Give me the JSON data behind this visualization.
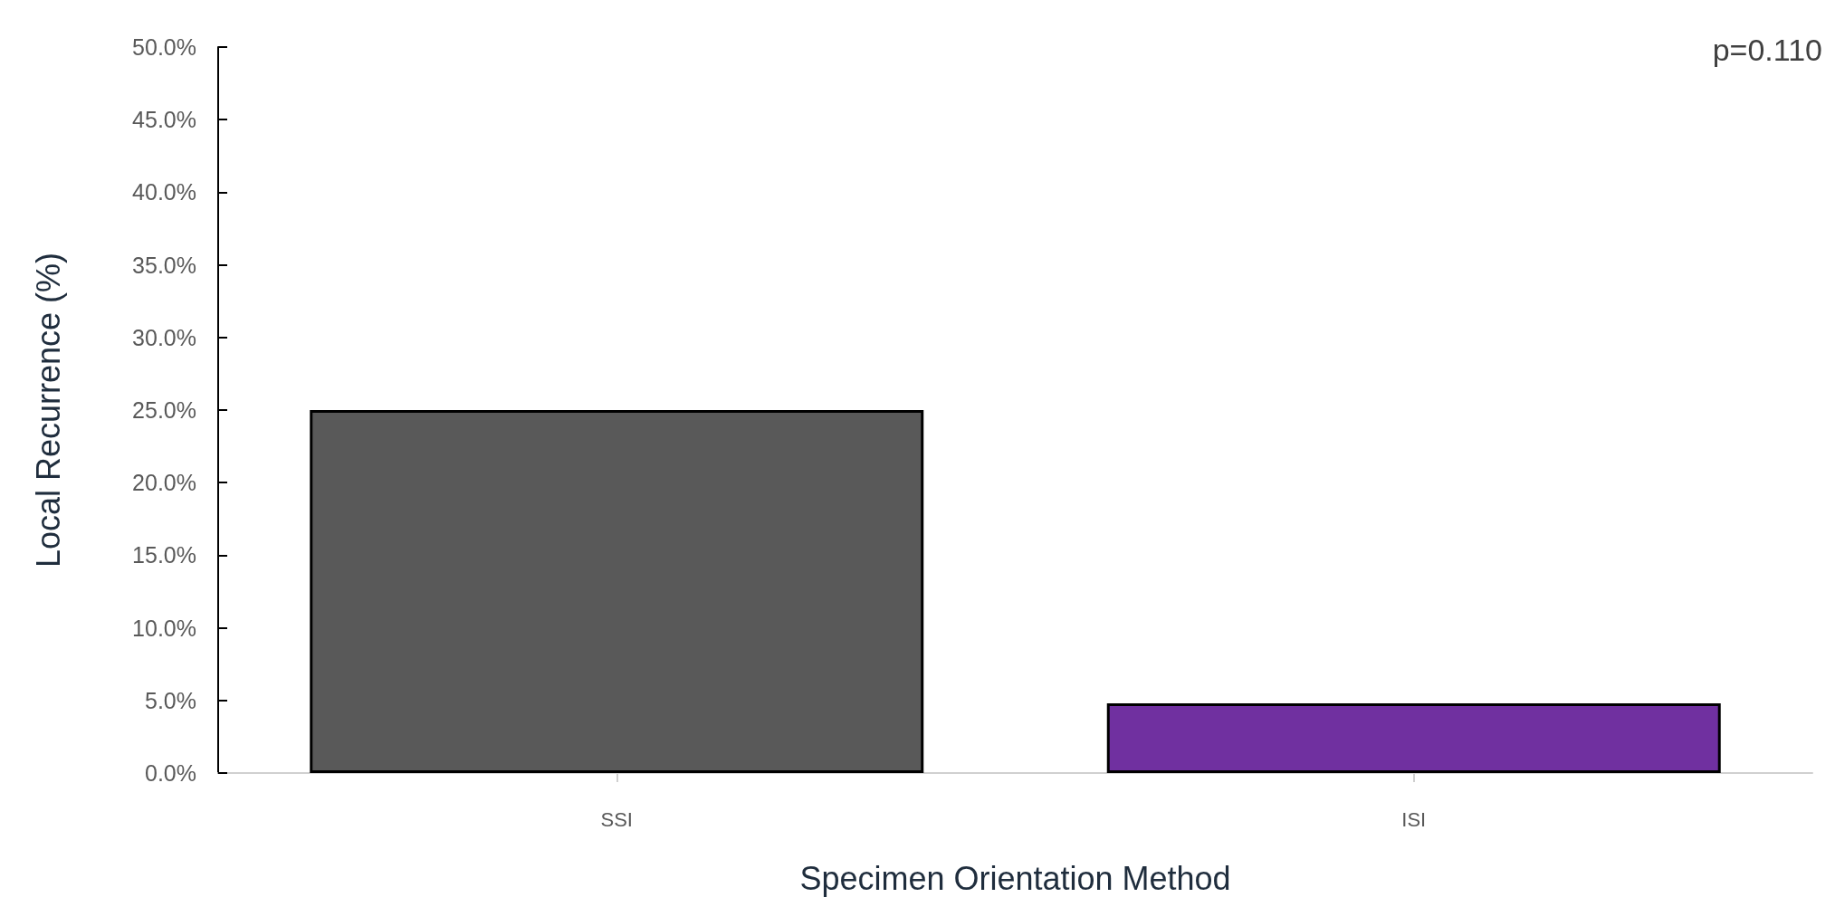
{
  "chart_data": {
    "type": "bar",
    "categories": [
      "SSI",
      "ISI"
    ],
    "values": [
      25.0,
      4.8
    ],
    "colors": [
      "#595959",
      "#7030a0"
    ],
    "xlabel": "Specimen Orientation Method",
    "ylabel": "Local Recurrence (%)",
    "ylim": [
      0,
      50
    ],
    "yticks": [
      {
        "value": 0,
        "label": "0.0%"
      },
      {
        "value": 5,
        "label": "5.0%"
      },
      {
        "value": 10,
        "label": "10.0%"
      },
      {
        "value": 15,
        "label": "15.0%"
      },
      {
        "value": 20,
        "label": "20.0%"
      },
      {
        "value": 25,
        "label": "25.0%"
      },
      {
        "value": 30,
        "label": "30.0%"
      },
      {
        "value": 35,
        "label": "35.0%"
      },
      {
        "value": 40,
        "label": "40.0%"
      },
      {
        "value": 45,
        "label": "45.0%"
      },
      {
        "value": 50,
        "label": "50.0%"
      }
    ],
    "annotations": [
      "p=0.110"
    ],
    "grid": false
  }
}
